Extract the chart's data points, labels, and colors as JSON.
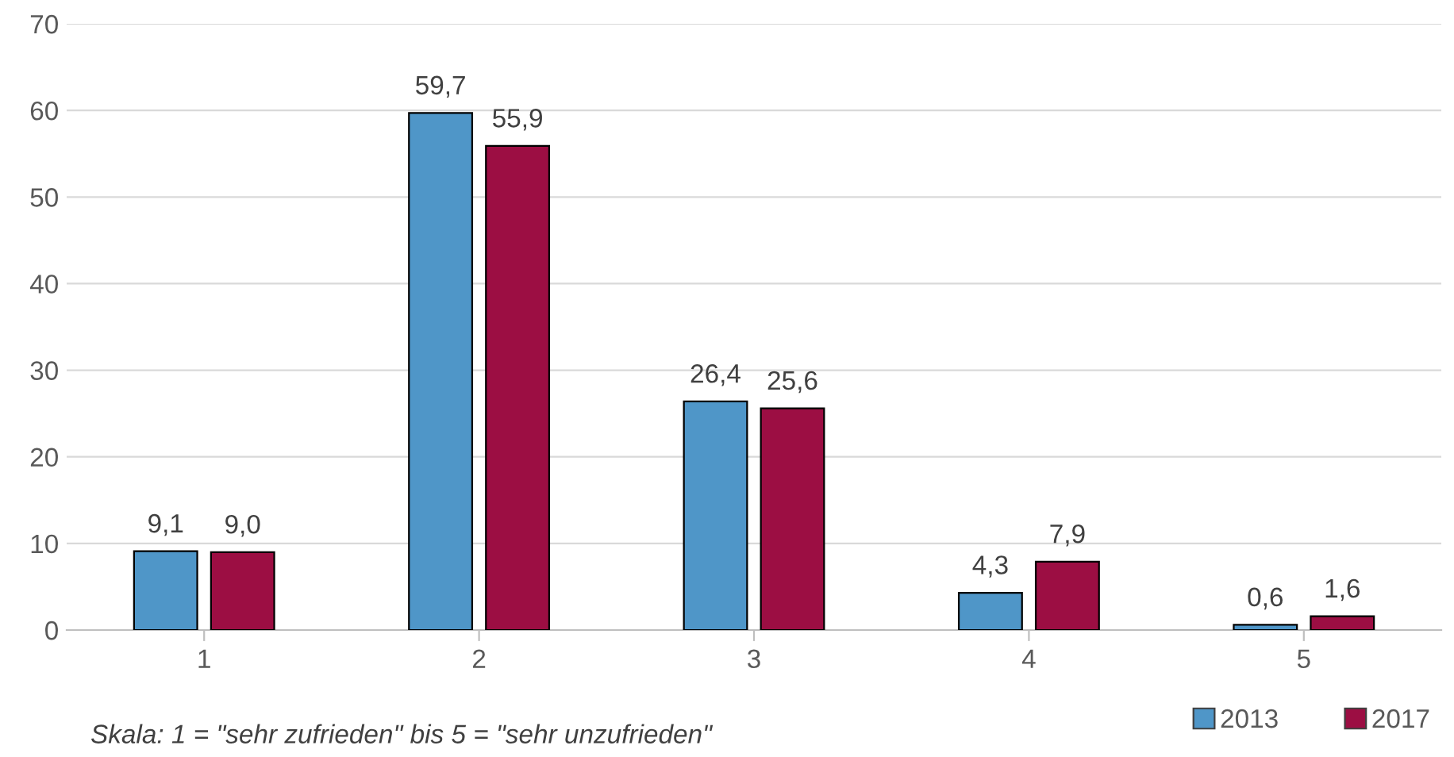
{
  "chart_data": {
    "type": "bar",
    "categories": [
      "1",
      "2",
      "3",
      "4",
      "5"
    ],
    "series": [
      {
        "name": "2013",
        "color": "#4f96c8",
        "values": [
          9.1,
          59.7,
          26.4,
          4.3,
          0.6
        ],
        "value_labels": [
          "9,1",
          "59,7",
          "26,4",
          "4,3",
          "0,6"
        ]
      },
      {
        "name": "2017",
        "color": "#9c0e43",
        "values": [
          9.0,
          55.9,
          25.6,
          7.9,
          1.6
        ],
        "value_labels": [
          "9,0",
          "55,9",
          "25,6",
          "7,9",
          "1,6"
        ]
      }
    ],
    "ylim": [
      0,
      70
    ],
    "yticks": [
      0,
      10,
      20,
      30,
      40,
      50,
      60,
      70
    ],
    "grid": "y",
    "legend": "bottom right",
    "annotations": [
      "Skala: 1 = \"sehr zufrieden\" bis 5 = \"sehr unzufrieden\""
    ]
  }
}
